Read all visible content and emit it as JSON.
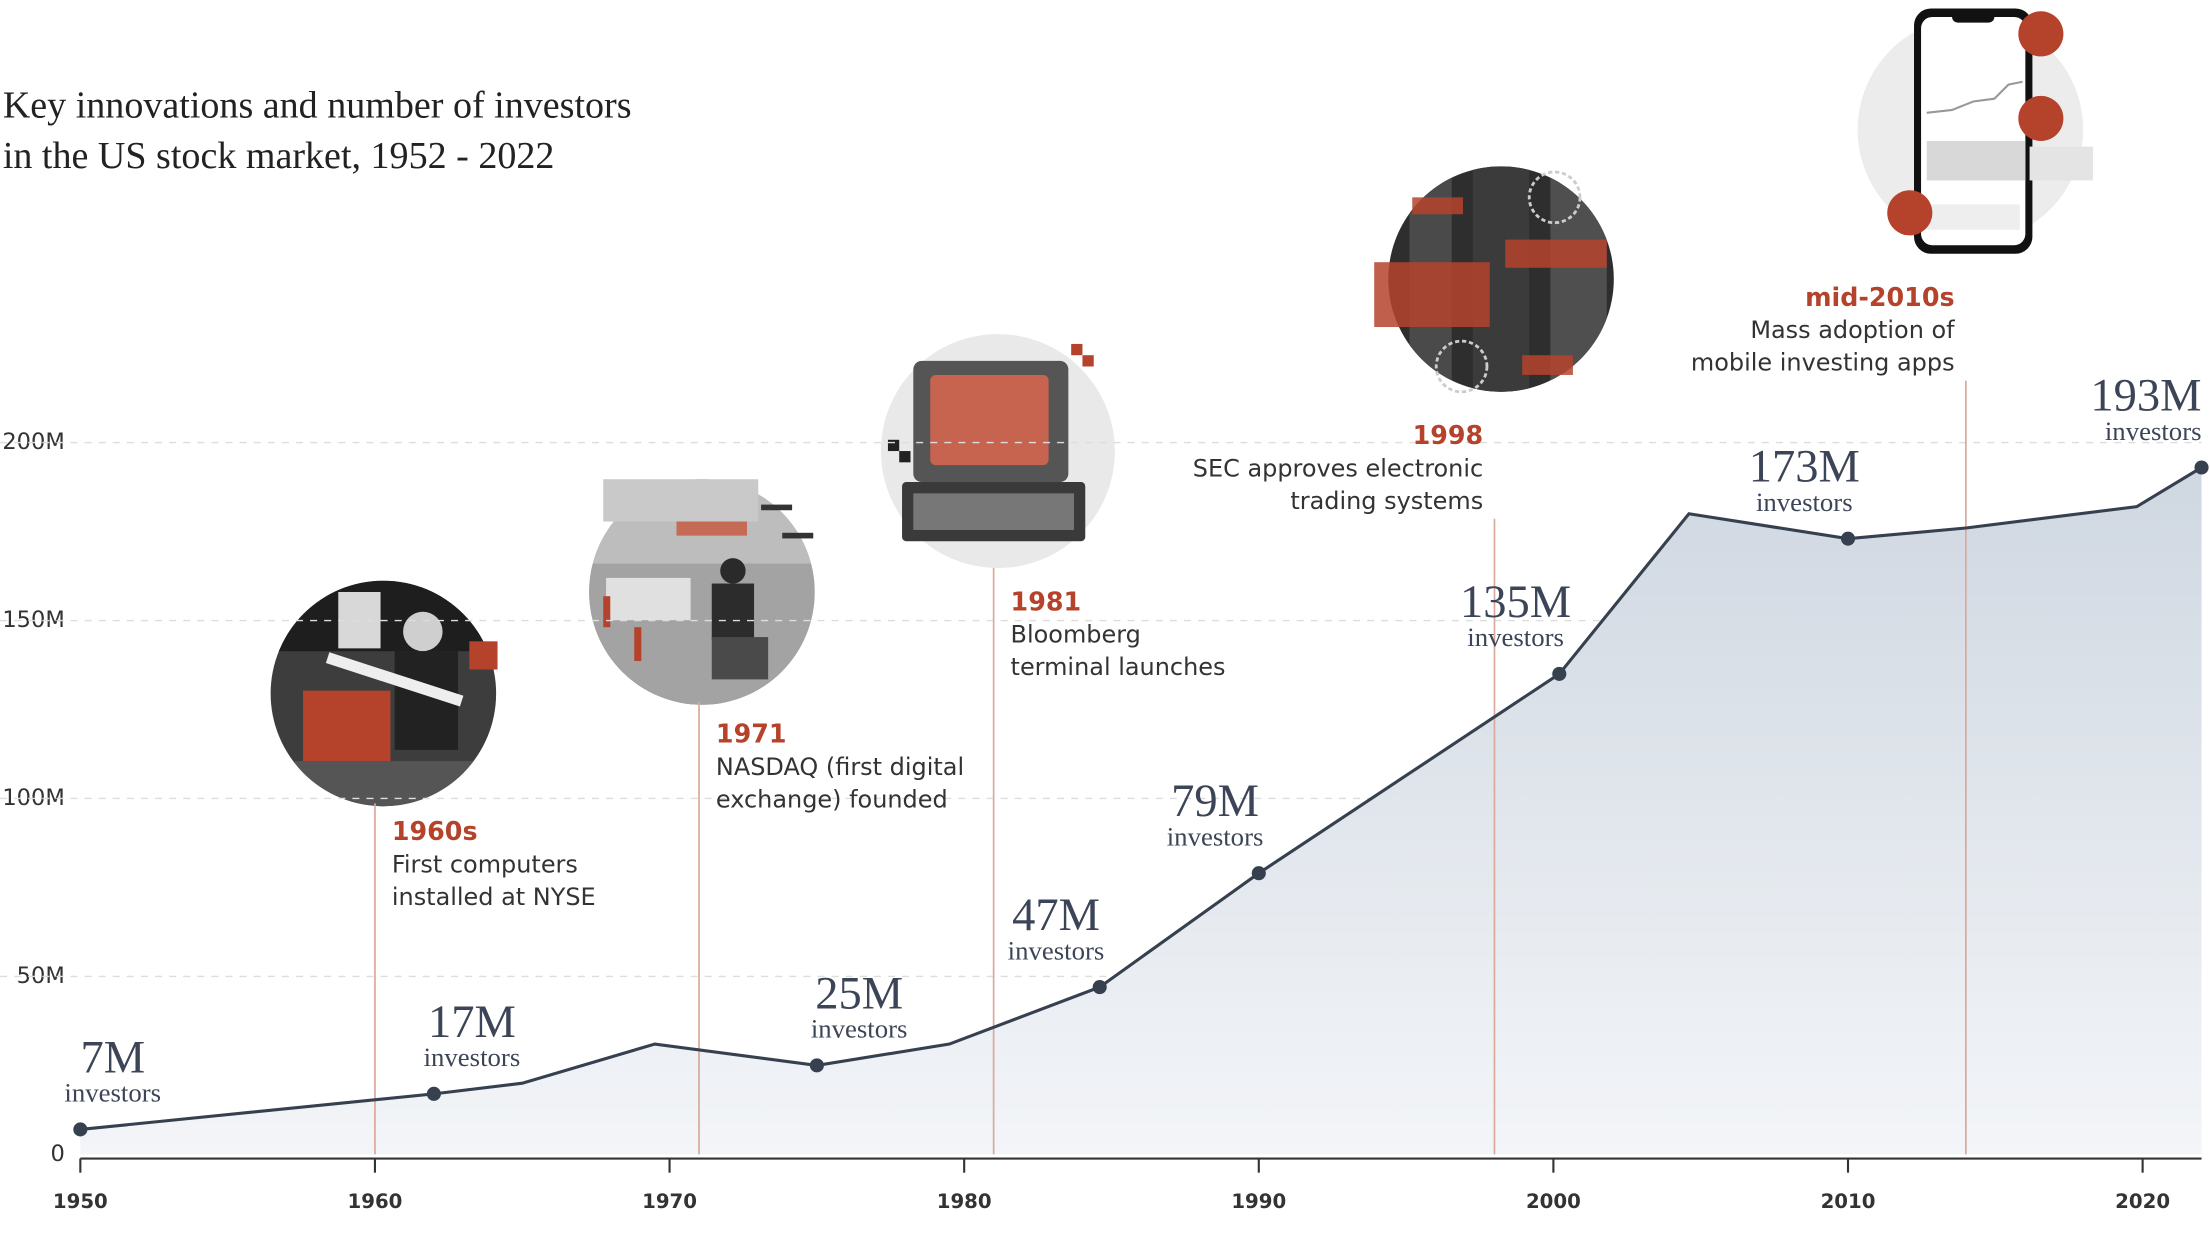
{
  "chart_data": {
    "type": "area",
    "title": [
      "Key innovations and number of investors",
      "in the US stock market, 1952 - 2022"
    ],
    "x": [
      1950,
      1962,
      1965,
      1969.5,
      1975,
      1979.5,
      1984.6,
      1990,
      2000.2,
      2004.6,
      2010,
      2014,
      2019.8,
      2022
    ],
    "values": [
      7,
      17,
      20,
      31,
      25,
      31,
      47,
      79,
      135,
      180,
      173,
      176,
      182,
      193
    ],
    "value_labels": [
      "7M",
      "17M",
      null,
      null,
      "25M",
      null,
      "47M",
      "79M",
      "135M",
      null,
      "173M",
      null,
      null,
      "193M"
    ],
    "label_suffix": "investors",
    "color": "#36404f",
    "xlim": [
      1950,
      2022
    ],
    "xticks": [
      1950,
      1960,
      1970,
      1980,
      1990,
      2000,
      2010,
      2020
    ],
    "ylim": [
      0,
      200
    ],
    "yticks": [
      0,
      {
        "value": 50,
        "label": "50M"
      },
      {
        "value": 100,
        "label": "100M"
      },
      {
        "value": 150,
        "label": "150M"
      },
      {
        "value": 200,
        "label": "200M"
      }
    ],
    "grid": true,
    "annotation_color": "#b5432b",
    "annotations": [
      {
        "x": 1960,
        "label": "1960s",
        "lines": [
          "First computers",
          "installed at NYSE"
        ]
      },
      {
        "x": 1971,
        "label": "1971",
        "lines": [
          "NASDAQ (first digital",
          "exchange) founded"
        ]
      },
      {
        "x": 1981,
        "label": "1981",
        "lines": [
          "Bloomberg",
          "terminal launches"
        ]
      },
      {
        "x": 1998,
        "label": "1998",
        "lines": [
          "SEC approves electronic",
          "trading systems"
        ]
      },
      {
        "x": 2014,
        "label": "mid-2010s",
        "lines": [
          "Mass adoption of",
          "mobile investing apps"
        ]
      }
    ]
  }
}
